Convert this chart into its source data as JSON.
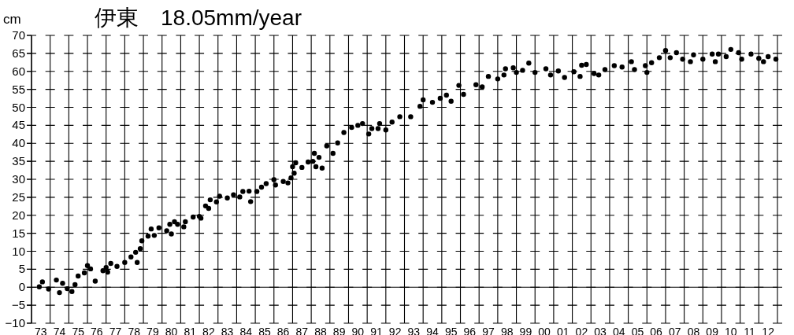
{
  "chart_data": {
    "type": "scatter",
    "title": "伊東　18.05mm/year",
    "ylabel": "cm",
    "xlim": [
      "1973",
      "2013"
    ],
    "ylim": [
      -10,
      70
    ],
    "yticks": [
      -10,
      -5,
      0,
      5,
      10,
      15,
      20,
      25,
      30,
      35,
      40,
      45,
      50,
      55,
      60,
      65,
      70
    ],
    "xticks": [
      {
        "value": "1973",
        "label": null
      },
      {
        "value": "1973-07",
        "label": "73"
      },
      {
        "value": "1974",
        "label": null
      },
      {
        "value": "1974-07",
        "label": "74"
      },
      {
        "value": "1975",
        "label": null
      },
      {
        "value": "1975-07",
        "label": "75"
      },
      {
        "value": "1976",
        "label": null
      },
      {
        "value": "1976-07",
        "label": "76"
      },
      {
        "value": "1977",
        "label": null
      },
      {
        "value": "1977-07",
        "label": "77"
      },
      {
        "value": "1978",
        "label": null
      },
      {
        "value": "1978-07",
        "label": "78"
      },
      {
        "value": "1979",
        "label": null
      },
      {
        "value": "1979-07",
        "label": "79"
      },
      {
        "value": "1980",
        "label": null
      },
      {
        "value": "1980-07",
        "label": "80"
      },
      {
        "value": "1981",
        "label": null
      },
      {
        "value": "1981-07",
        "label": "81"
      },
      {
        "value": "1982",
        "label": null
      },
      {
        "value": "1982-07",
        "label": "82"
      },
      {
        "value": "1983",
        "label": null
      },
      {
        "value": "1983-07",
        "label": "83"
      },
      {
        "value": "1984",
        "label": null
      },
      {
        "value": "1984-07",
        "label": "84"
      },
      {
        "value": "1985",
        "label": null
      },
      {
        "value": "1985-07",
        "label": "85"
      },
      {
        "value": "1986",
        "label": null
      },
      {
        "value": "1986-07",
        "label": "86"
      },
      {
        "value": "1987",
        "label": null
      },
      {
        "value": "1987-07",
        "label": "87"
      },
      {
        "value": "1988",
        "label": null
      },
      {
        "value": "1988-07",
        "label": "88"
      },
      {
        "value": "1989",
        "label": null
      },
      {
        "value": "1989-07",
        "label": "89"
      },
      {
        "value": "1990",
        "label": null
      },
      {
        "value": "1990-07",
        "label": "90"
      },
      {
        "value": "1991",
        "label": null
      },
      {
        "value": "1991-07",
        "label": "91"
      },
      {
        "value": "1992",
        "label": null
      },
      {
        "value": "1992-07",
        "label": "92"
      },
      {
        "value": "1993",
        "label": null
      },
      {
        "value": "1993-07",
        "label": "93"
      },
      {
        "value": "1994",
        "label": null
      },
      {
        "value": "1994-07",
        "label": "94"
      },
      {
        "value": "1995",
        "label": null
      },
      {
        "value": "1995-07",
        "label": "95"
      },
      {
        "value": "1996",
        "label": null
      },
      {
        "value": "1996-07",
        "label": "96"
      },
      {
        "value": "1997",
        "label": null
      },
      {
        "value": "1997-07",
        "label": "97"
      },
      {
        "value": "1998",
        "label": null
      },
      {
        "value": "1998-07",
        "label": "98"
      },
      {
        "value": "1999",
        "label": null
      },
      {
        "value": "1999-07",
        "label": "99"
      },
      {
        "value": "2000",
        "label": null
      },
      {
        "value": "2000-07",
        "label": "00"
      },
      {
        "value": "2001",
        "label": null
      },
      {
        "value": "2001-07",
        "label": "01"
      },
      {
        "value": "2002",
        "label": null
      },
      {
        "value": "2002-07",
        "label": "02"
      },
      {
        "value": "2003",
        "label": null
      },
      {
        "value": "2003-07",
        "label": "03"
      },
      {
        "value": "2004",
        "label": null
      },
      {
        "value": "2004-07",
        "label": "04"
      },
      {
        "value": "2005",
        "label": null
      },
      {
        "value": "2005-07",
        "label": "05"
      },
      {
        "value": "2006",
        "label": null
      },
      {
        "value": "2006-07",
        "label": "06"
      },
      {
        "value": "2007",
        "label": null
      },
      {
        "value": "2007-07",
        "label": "07"
      },
      {
        "value": "2008",
        "label": null
      },
      {
        "value": "2008-07",
        "label": "08"
      },
      {
        "value": "2009",
        "label": null
      },
      {
        "value": "2009-07",
        "label": "09"
      },
      {
        "value": "2010",
        "label": null
      },
      {
        "value": "2010-07",
        "label": "10"
      },
      {
        "value": "2011",
        "label": null
      },
      {
        "value": "2011-07",
        "label": "11"
      },
      {
        "value": "2012",
        "label": null
      },
      {
        "value": "2012-07",
        "label": "12"
      },
      {
        "value": "2013",
        "label": null
      }
    ],
    "grid": "x",
    "marker": "circle",
    "ref_lines": [
      {
        "axis": "y",
        "value": 0,
        "color": "#000000"
      }
    ],
    "series": [
      {
        "color": "#000000",
        "x": [
          "1973-06",
          "1973-08",
          "1973-12",
          "1974-05",
          "1974-07",
          "1974-09",
          "1974-12",
          "1975-03",
          "1975-05",
          "1975-07",
          "1975-11",
          "1976-01",
          "1976-03",
          "1976-06",
          "1976-11",
          "1977-01",
          "1977-02",
          "1977-04",
          "1977-08",
          "1978-01",
          "1978-05",
          "1978-08",
          "1978-09",
          "1978-11",
          "1978-12",
          "1979-04",
          "1979-06",
          "1979-08",
          "1979-11",
          "1980-04",
          "1980-06",
          "1980-07",
          "1980-09",
          "1980-11",
          "1981-03",
          "1981-04",
          "1981-09",
          "1982-01",
          "1982-02",
          "1982-05",
          "1982-07",
          "1982-08",
          "1982-12",
          "1983-02",
          "1983-07",
          "1983-11",
          "1984-03",
          "1984-05",
          "1984-09",
          "1984-10",
          "1985-02",
          "1985-05",
          "1985-08",
          "1986-01",
          "1986-02",
          "1986-07",
          "1986-10",
          "1986-12",
          "1987-01",
          "1987-02",
          "1987-03",
          "1987-07",
          "1987-11",
          "1988-02",
          "1988-03",
          "1988-04",
          "1988-06",
          "1988-08",
          "1988-11",
          "1989-03",
          "1989-06",
          "1989-10",
          "1990-03",
          "1990-07",
          "1990-10",
          "1991-02",
          "1991-04",
          "1991-08",
          "1991-09",
          "1992-01",
          "1992-05",
          "1992-10",
          "1993-05",
          "1993-11",
          "1994-01",
          "1994-07",
          "1994-12",
          "1995-04",
          "1995-07",
          "1995-12",
          "1996-03",
          "1996-11",
          "1997-03",
          "1997-07",
          "1998-01",
          "1998-05",
          "1998-06",
          "1998-11",
          "1999-01",
          "1999-05",
          "1999-09",
          "2000-01",
          "2000-08",
          "2000-11",
          "2001-04",
          "2001-08",
          "2002-02",
          "2002-06",
          "2002-07",
          "2002-10",
          "2003-03",
          "2003-06",
          "2003-10",
          "2004-04",
          "2004-09",
          "2005-03",
          "2005-05",
          "2005-12",
          "2006-01",
          "2006-04",
          "2006-09",
          "2007-01",
          "2007-04",
          "2007-08",
          "2007-12",
          "2008-05",
          "2008-07",
          "2009-01",
          "2009-07",
          "2009-09",
          "2009-11",
          "2010-04",
          "2010-07",
          "2010-12",
          "2011-02",
          "2011-08",
          "2012-01",
          "2012-04",
          "2012-07",
          "2012-12"
        ],
        "values": [
          0.1,
          1.5,
          -0.5,
          2.0,
          -1.5,
          1.1,
          -0.4,
          -1.2,
          0.7,
          3.1,
          4.0,
          6.0,
          5.1,
          1.7,
          4.6,
          5.5,
          4.2,
          6.6,
          5.8,
          6.9,
          8.4,
          9.7,
          6.9,
          10.7,
          12.9,
          14.2,
          16.2,
          14.4,
          16.5,
          15.7,
          17.5,
          14.8,
          18.2,
          17.5,
          16.8,
          18.2,
          19.5,
          19.7,
          19.2,
          22.6,
          21.9,
          24.3,
          23.7,
          25.3,
          24.8,
          25.7,
          25.1,
          26.6,
          26.7,
          23.8,
          26.6,
          27.8,
          28.8,
          29.9,
          28.4,
          29.4,
          29.0,
          30.4,
          33.5,
          31.7,
          34.6,
          33.3,
          34.8,
          35.0,
          37.2,
          33.5,
          36.1,
          33.1,
          39.3,
          37.2,
          40.1,
          43.0,
          44.4,
          45.0,
          45.5,
          42.6,
          44.1,
          44.1,
          45.5,
          43.7,
          45.9,
          47.4,
          47.4,
          50.3,
          52.1,
          51.4,
          52.5,
          53.4,
          51.7,
          56.1,
          53.6,
          56.3,
          55.7,
          58.6,
          57.9,
          59.0,
          60.7,
          61.0,
          59.7,
          60.3,
          62.3,
          59.7,
          60.7,
          59.0,
          60.1,
          58.3,
          59.9,
          58.6,
          61.7,
          61.9,
          59.4,
          59.0,
          60.5,
          61.6,
          61.2,
          62.7,
          60.5,
          61.6,
          59.7,
          62.4,
          63.8,
          65.8,
          63.8,
          65.2,
          63.4,
          62.7,
          64.6,
          63.4,
          64.8,
          62.7,
          64.8,
          64.1,
          66.1,
          65.2,
          63.4,
          64.8,
          63.6,
          62.7,
          64.1,
          63.4
        ]
      }
    ]
  }
}
